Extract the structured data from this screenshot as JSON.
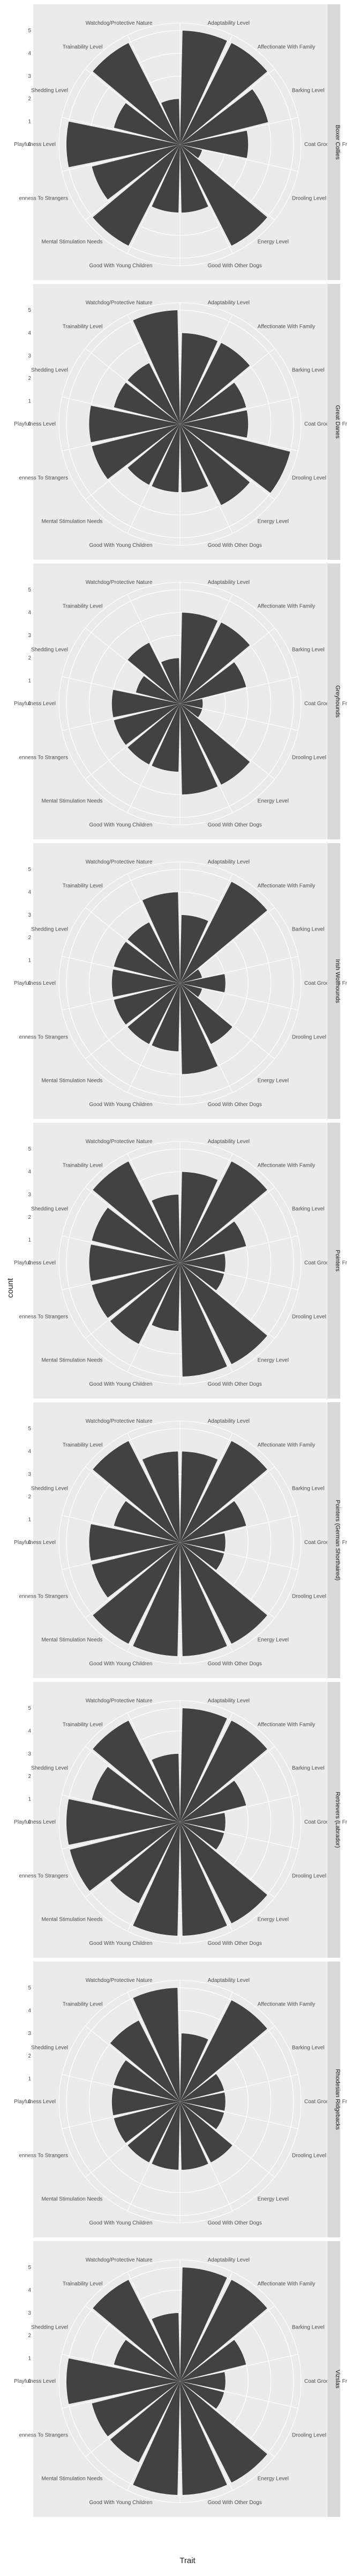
{
  "chart_data": {
    "type": "polar-bar",
    "xlabel": "Trait",
    "ylabel": "count",
    "ylim": [
      0,
      5
    ],
    "yticks": [
      0,
      1,
      2,
      3,
      4,
      5
    ],
    "categories": [
      "Adaptability Level",
      "Affectionate With Family",
      "Barking Level",
      "Coat Grooming Frequency",
      "Drooling Level",
      "Energy Level",
      "Good With Other Dogs",
      "Good With Young Children",
      "Mental Stimulation Needs",
      "Openness To Strangers",
      "Playfulness Level",
      "Shedding Level",
      "Trainability Level",
      "Watchdog/Protective Nature"
    ],
    "category_labels": [
      "Adaptability Level",
      "Affectionate With Family",
      "Barking Level",
      "Coat Grooming Fr",
      "Drooling Level",
      "Energy Level",
      "Good With Other Dogs",
      "Good With Young Children",
      "Mental Stimulation Needs",
      "enness To Strangers",
      "Playfulness Level",
      "Shedding Level",
      "Trainability Level",
      "Watchdog/Protective Nature"
    ],
    "grid": true,
    "bar_color": "#424242",
    "panel_color": "#ebebeb",
    "strip_color": "#d9d9d9",
    "facets": [
      {
        "label": "Boxer Collies",
        "values": [
          5,
          5,
          4,
          3,
          1,
          5,
          3,
          3,
          5,
          4,
          5,
          3,
          5,
          2
        ]
      },
      {
        "label": "Great Danes",
        "values": [
          4,
          4,
          3,
          3,
          5,
          4,
          3,
          3,
          3,
          4,
          4,
          3,
          3,
          5
        ]
      },
      {
        "label": "Greyhounds",
        "values": [
          4,
          4,
          3,
          1,
          1,
          4,
          4,
          3,
          3,
          3,
          3,
          2,
          3,
          2
        ]
      },
      {
        "label": "Irish Wolfhounds",
        "values": [
          3,
          5,
          1,
          2,
          1,
          3,
          4,
          3,
          3,
          3,
          3,
          3,
          3,
          4
        ]
      },
      {
        "label": "Pointers",
        "values": [
          4,
          5,
          3,
          2,
          2,
          5,
          5,
          3,
          4,
          4,
          4,
          4,
          5,
          3
        ]
      },
      {
        "label": "Pointers (German Shorthaired)",
        "values": [
          4,
          5,
          3,
          2,
          2,
          5,
          5,
          5,
          5,
          4,
          4,
          3,
          5,
          4
        ]
      },
      {
        "label": "Retrievers (Labrador)",
        "values": [
          5,
          5,
          3,
          2,
          2,
          5,
          5,
          5,
          4,
          5,
          5,
          4,
          5,
          3
        ]
      },
      {
        "label": "Rhodesian Ridgebacks",
        "values": [
          3,
          5,
          2,
          2,
          2,
          3,
          3,
          3,
          3,
          3,
          3,
          3,
          4,
          5
        ]
      },
      {
        "label": "Vizslas",
        "values": [
          5,
          5,
          3,
          2,
          2,
          5,
          5,
          5,
          4,
          4,
          5,
          3,
          5,
          3
        ]
      }
    ]
  }
}
